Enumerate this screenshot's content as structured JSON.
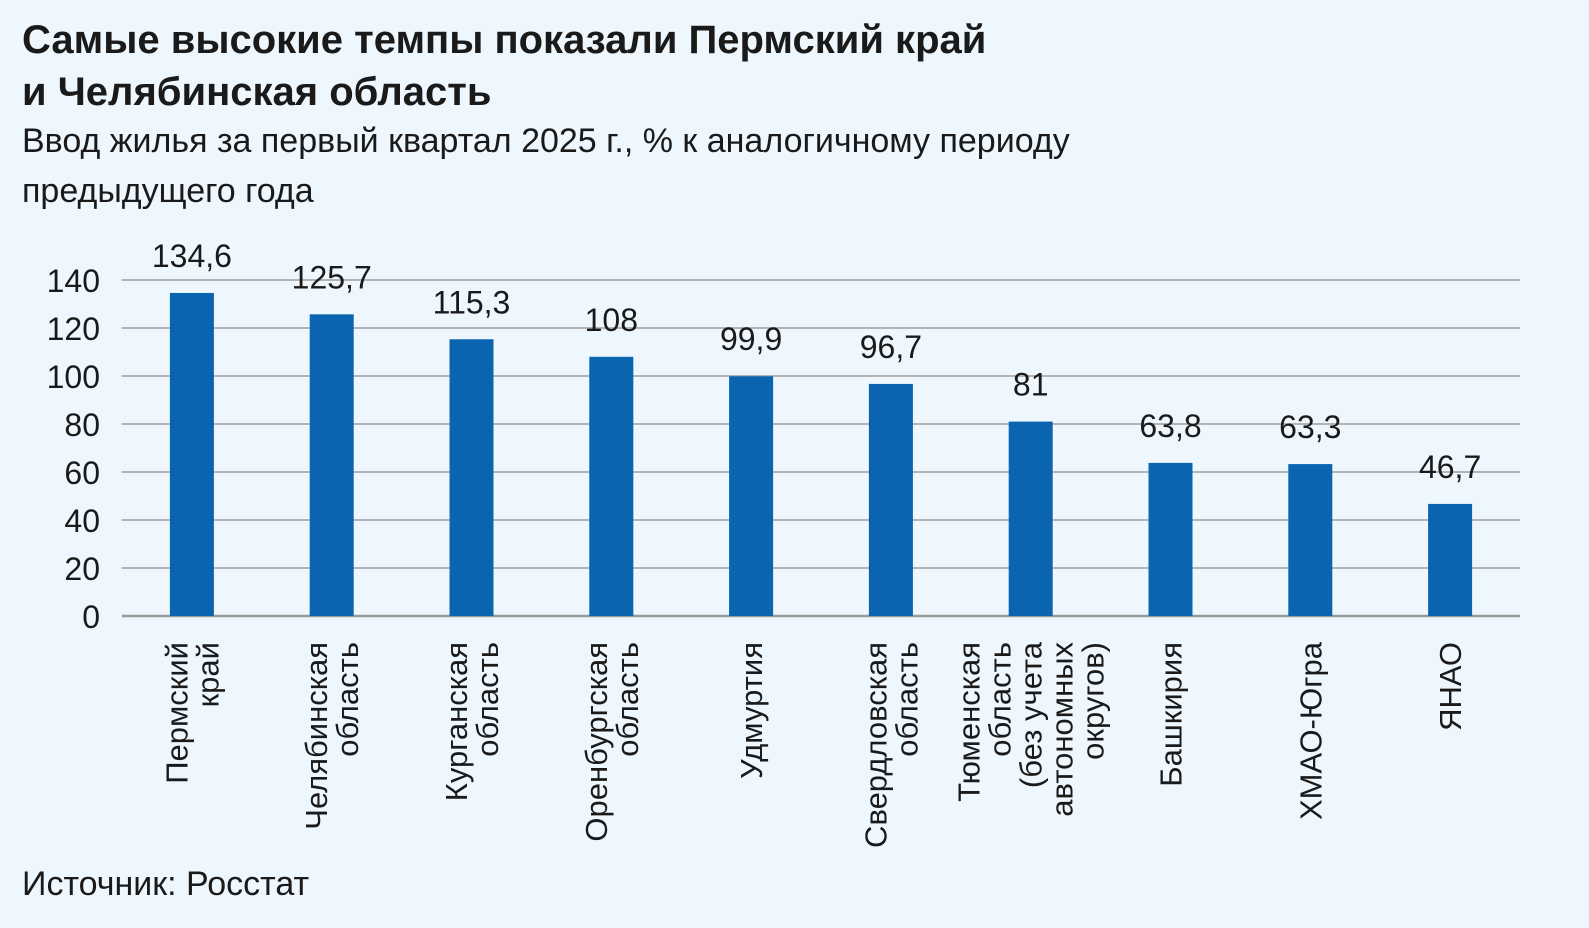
{
  "header": {
    "title_line1": "Самые высокие темпы показали Пермский край",
    "title_line2": "и Челябинская область",
    "subtitle_line1": "Ввод жилья за первый квартал 2025 г., % к аналогичному периоду",
    "subtitle_line2": "предыдущего года"
  },
  "footer": {
    "source": "Источник: Росстат"
  },
  "chart_data": {
    "type": "bar",
    "title": "Самые высокие темпы показали Пермский край и Челябинская область",
    "subtitle": "Ввод жилья за первый квартал 2025 г., % к аналогичному периоду предыдущего года",
    "xlabel": "",
    "ylabel": "",
    "ylim": [
      0,
      140
    ],
    "yticks": [
      0,
      20,
      40,
      60,
      80,
      100,
      120,
      140
    ],
    "grid": true,
    "legend": "none",
    "bar_color": "#0a64b0",
    "categories": [
      [
        "Пермский",
        "край"
      ],
      [
        "Челябинская",
        "область"
      ],
      [
        "Курганская",
        "область"
      ],
      [
        "Оренбургская",
        "область"
      ],
      [
        "Удмуртия"
      ],
      [
        "Свердловская",
        "область"
      ],
      [
        "Тюменская",
        "область",
        "(без учета",
        "автономных",
        "округов)"
      ],
      [
        "Башкирия"
      ],
      [
        "ХМАО-Югра"
      ],
      [
        "ЯНАО"
      ]
    ],
    "values": [
      134.6,
      125.7,
      115.3,
      108,
      99.9,
      96.7,
      81,
      63.8,
      63.3,
      46.7
    ],
    "value_labels": [
      "134,6",
      "125,7",
      "115,3",
      "108",
      "99,9",
      "96,7",
      "81",
      "63,8",
      "63,3",
      "46,7"
    ]
  }
}
